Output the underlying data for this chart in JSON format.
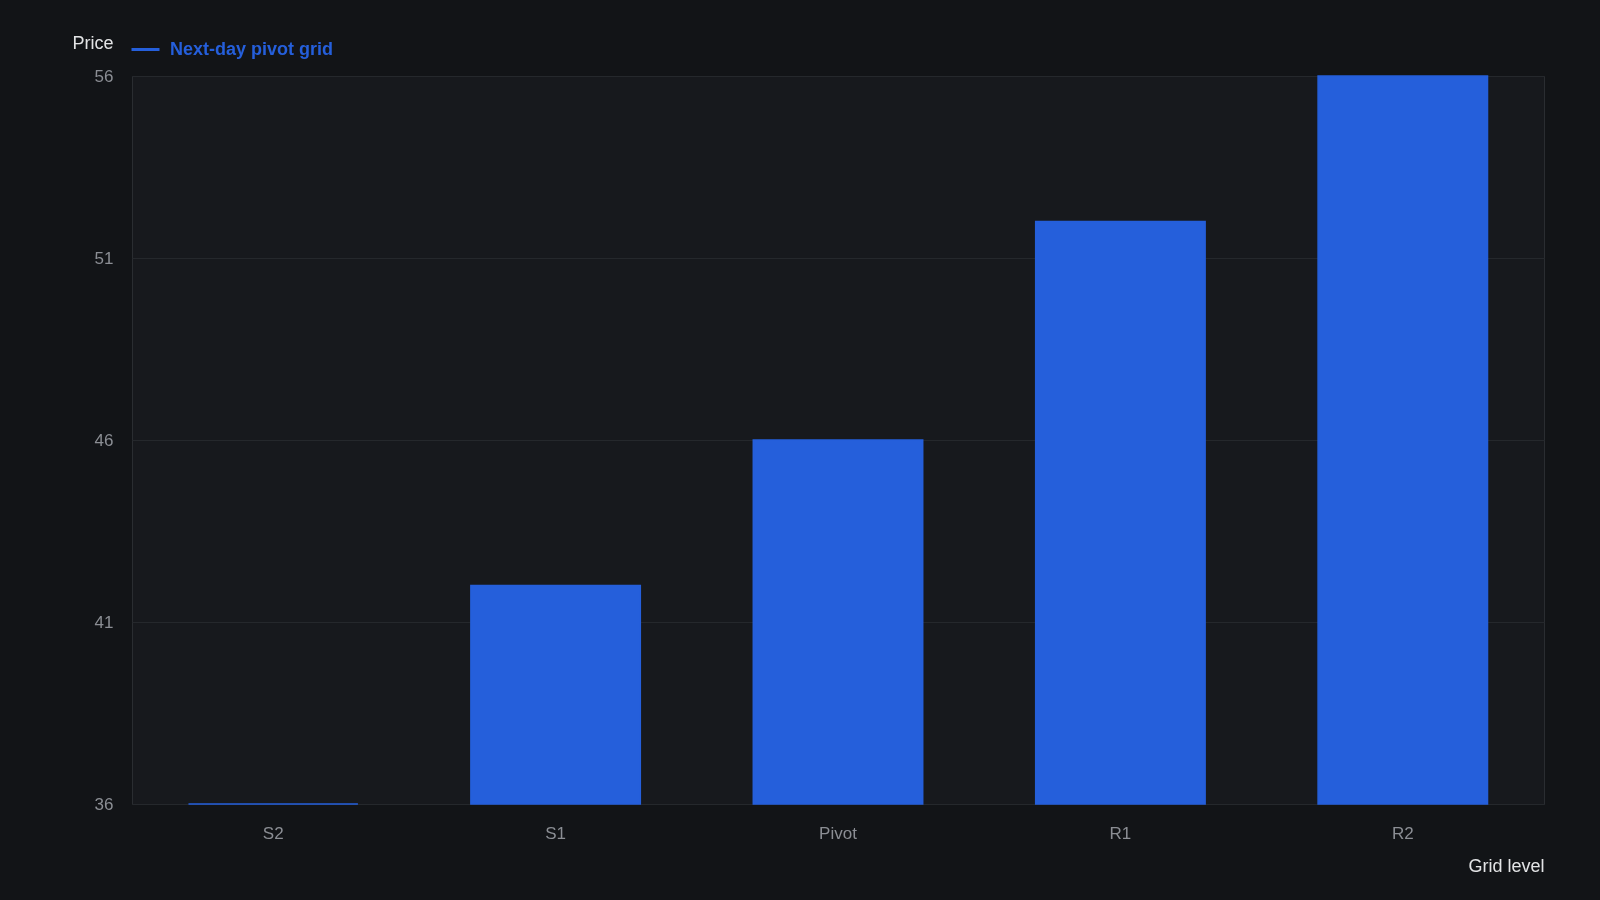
{
  "chart_data": {
    "type": "bar",
    "xlabel": "Grid level",
    "ylabel": "Price",
    "categories": [
      "S2",
      "S1",
      "Pivot",
      "R1",
      "R2"
    ],
    "series": [
      {
        "name": "Next-day pivot grid",
        "color": "#255fdb",
        "values": [
          36,
          42,
          46,
          52,
          56
        ]
      }
    ],
    "ylim": [
      36,
      56
    ],
    "yticks": [
      36,
      41,
      46,
      51,
      56
    ],
    "grid": "y",
    "legend": "top left"
  }
}
